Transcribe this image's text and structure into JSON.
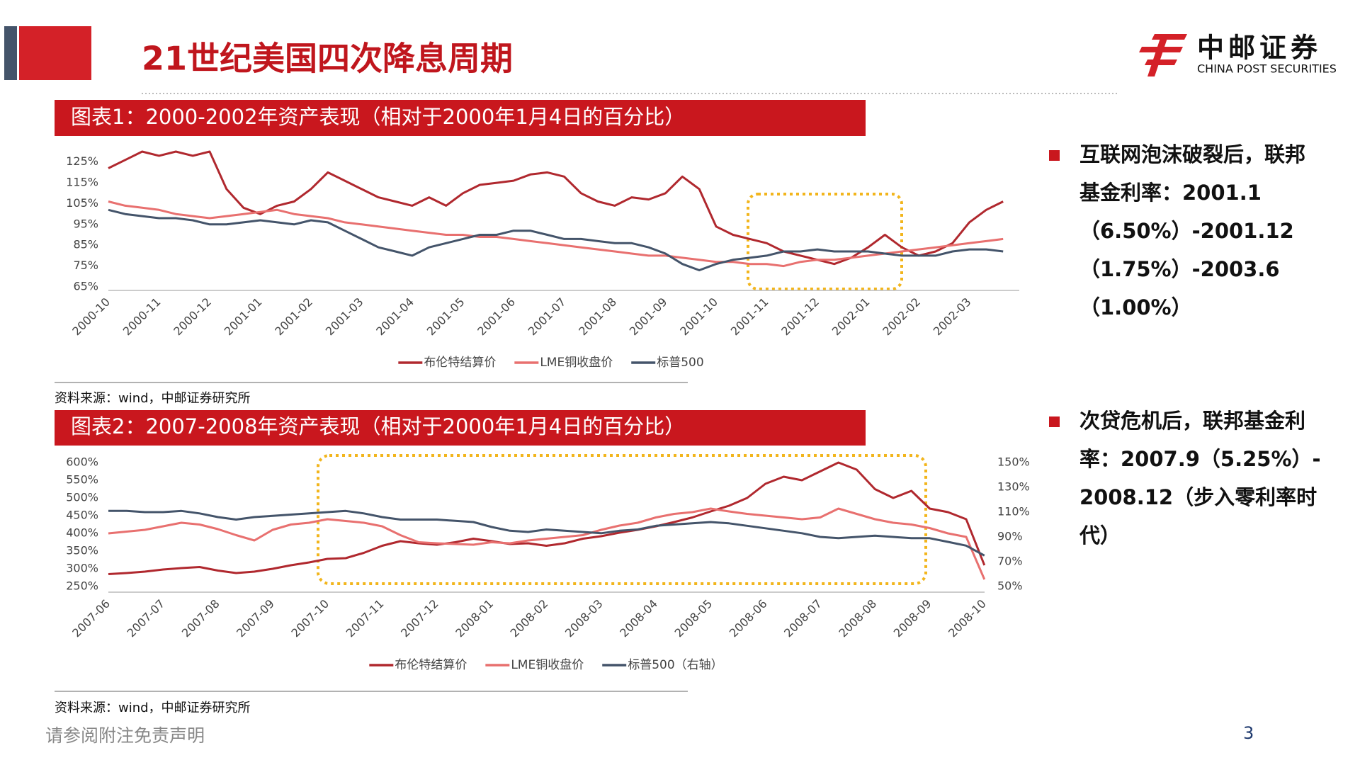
{
  "slide": {
    "title": "21世纪美国四次降息周期",
    "logo_name": "中邮证券",
    "logo_en": "CHINA POST SECURITIES",
    "footer": "请参阅附注免责声明",
    "page": "3"
  },
  "notes": [
    {
      "lines": [
        "互联网泡沫破裂后，联邦",
        "基金利率：2001.1",
        "（6.50%）-2001.12",
        "（1.75%）-2003.6",
        "（1.00%）"
      ]
    },
    {
      "lines": [
        "次贷危机后，联邦基金利",
        "率：2007.9（5.25%）-",
        "2008.12（步入零利率时",
        "代）"
      ]
    }
  ],
  "chart_data": [
    {
      "type": "line",
      "title": "图表1：2000-2002年资产表现（相对于2000年1月4日的百分比）",
      "source": "资料来源：wind，中邮证券研究所",
      "categories": [
        "2000-10",
        null,
        null,
        "2000-11",
        null,
        null,
        "2000-12",
        null,
        null,
        "2001-01",
        null,
        null,
        "2001-02",
        null,
        null,
        "2001-03",
        null,
        null,
        "2001-04",
        null,
        null,
        "2001-05",
        null,
        null,
        "2001-06",
        null,
        null,
        "2001-07",
        null,
        null,
        "2001-08",
        null,
        null,
        "2001-09",
        null,
        null,
        "2001-10",
        null,
        null,
        "2001-11",
        null,
        null,
        "2001-12",
        null,
        null,
        "2002-01",
        null,
        null,
        "2002-02",
        null,
        null,
        "2002-03",
        null,
        null
      ],
      "ylim": [
        65,
        130
      ],
      "yticks": [
        {
          "value": 65,
          "label": "65%"
        },
        {
          "value": 75,
          "label": "75%"
        },
        {
          "value": 85,
          "label": "85%"
        },
        {
          "value": 95,
          "label": "95%"
        },
        {
          "value": 105,
          "label": "105%"
        },
        {
          "value": 115,
          "label": "115%"
        },
        {
          "value": 125,
          "label": "125%"
        }
      ],
      "series": [
        {
          "name": "布伦特结算价",
          "color": "#b0282e",
          "values": [
            122,
            126,
            130,
            128,
            130,
            128,
            130,
            112,
            103,
            100,
            104,
            106,
            112,
            120,
            116,
            112,
            108,
            106,
            104,
            108,
            104,
            110,
            114,
            115,
            116,
            119,
            120,
            118,
            110,
            106,
            104,
            108,
            107,
            110,
            118,
            112,
            94,
            90,
            88,
            86,
            82,
            80,
            78,
            76,
            79,
            84,
            90,
            84,
            80,
            82,
            86,
            96,
            102,
            106
          ]
        },
        {
          "name": "LME铜收盘价",
          "color": "#e8706f",
          "values": [
            106,
            104,
            103,
            102,
            100,
            99,
            98,
            99,
            100,
            101,
            102,
            100,
            99,
            98,
            96,
            95,
            94,
            93,
            92,
            91,
            90,
            90,
            89,
            89,
            88,
            87,
            86,
            85,
            84,
            83,
            82,
            81,
            80,
            80,
            79,
            78,
            77,
            77,
            76,
            76,
            75,
            77,
            78,
            78,
            79,
            80,
            81,
            82,
            83,
            84,
            85,
            86,
            87,
            88
          ]
        },
        {
          "name": "标普500",
          "color": "#44546a",
          "values": [
            102,
            100,
            99,
            98,
            98,
            97,
            95,
            95,
            96,
            97,
            96,
            95,
            97,
            96,
            92,
            88,
            84,
            82,
            80,
            84,
            86,
            88,
            90,
            90,
            92,
            92,
            90,
            88,
            88,
            87,
            86,
            86,
            84,
            81,
            76,
            73,
            76,
            78,
            79,
            80,
            82,
            82,
            83,
            82,
            82,
            82,
            81,
            80,
            80,
            80,
            82,
            83,
            83,
            82
          ]
        }
      ]
    },
    {
      "type": "line",
      "title": "图表2：2007-2008年资产表现（相对于2000年1月4日的百分比）",
      "source": "资料来源：wind，中邮证券研究所",
      "categories": [
        "2007-06",
        null,
        null,
        "2007-07",
        null,
        null,
        "2007-08",
        null,
        null,
        "2007-09",
        null,
        null,
        "2007-10",
        null,
        null,
        "2007-11",
        null,
        null,
        "2007-12",
        null,
        null,
        "2008-01",
        null,
        null,
        "2008-02",
        null,
        null,
        "2008-03",
        null,
        null,
        "2008-04",
        null,
        null,
        "2008-05",
        null,
        null,
        "2008-06",
        null,
        null,
        "2008-07",
        null,
        null,
        "2008-08",
        null,
        null,
        "2008-09",
        null,
        null,
        "2008-10"
      ],
      "ylim": [
        250,
        600
      ],
      "yticks": [
        {
          "value": 250,
          "label": "250%"
        },
        {
          "value": 300,
          "label": "300%"
        },
        {
          "value": 350,
          "label": "350%"
        },
        {
          "value": 400,
          "label": "400%"
        },
        {
          "value": 450,
          "label": "450%"
        },
        {
          "value": 500,
          "label": "500%"
        },
        {
          "value": 550,
          "label": "550%"
        },
        {
          "value": 600,
          "label": "600%"
        }
      ],
      "y2lim": [
        50,
        150
      ],
      "y2ticks": [
        {
          "value": 50,
          "label": "50%"
        },
        {
          "value": 70,
          "label": "70%"
        },
        {
          "value": 90,
          "label": "90%"
        },
        {
          "value": 110,
          "label": "110%"
        },
        {
          "value": 130,
          "label": "130%"
        },
        {
          "value": 150,
          "label": "150%"
        }
      ],
      "series": [
        {
          "name": "布伦特结算价",
          "color": "#b0282e",
          "values": [
            285,
            288,
            292,
            298,
            302,
            305,
            295,
            288,
            292,
            300,
            310,
            318,
            328,
            330,
            345,
            365,
            378,
            372,
            368,
            375,
            385,
            378,
            370,
            372,
            365,
            372,
            385,
            392,
            402,
            410,
            420,
            432,
            445,
            462,
            478,
            500,
            540,
            560,
            550,
            575,
            600,
            580,
            525,
            500,
            520,
            470,
            460,
            440,
            310
          ]
        },
        {
          "name": "LME铜收盘价",
          "color": "#e8706f",
          "values": [
            400,
            405,
            410,
            420,
            430,
            425,
            412,
            395,
            380,
            410,
            425,
            430,
            440,
            435,
            430,
            420,
            395,
            375,
            372,
            370,
            368,
            375,
            372,
            380,
            385,
            390,
            395,
            410,
            422,
            430,
            445,
            455,
            460,
            470,
            462,
            455,
            450,
            445,
            440,
            445,
            470,
            455,
            440,
            430,
            425,
            415,
            400,
            390,
            270
          ]
        },
        {
          "name": "标普500（右轴）",
          "color": "#44546a",
          "axis": "y2",
          "values": [
            111,
            111,
            110,
            110,
            111,
            109,
            106,
            104,
            106,
            107,
            108,
            109,
            110,
            111,
            109,
            106,
            104,
            104,
            104,
            103,
            102,
            98,
            95,
            94,
            96,
            95,
            94,
            93,
            95,
            96,
            99,
            100,
            101,
            102,
            101,
            99,
            97,
            95,
            93,
            90,
            89,
            90,
            91,
            90,
            89,
            89,
            86,
            83,
            75
          ]
        }
      ]
    }
  ]
}
